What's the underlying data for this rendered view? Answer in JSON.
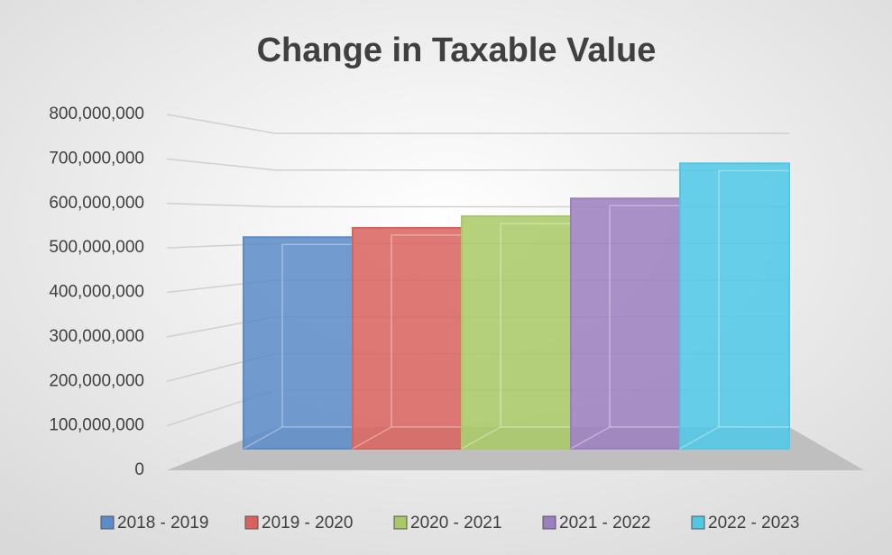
{
  "chart_data": {
    "type": "bar3d",
    "title": "Change in Taxable Value",
    "series": [
      {
        "name": "2018 - 2019",
        "color": "#5b8bc9",
        "values": [
          524000000
        ]
      },
      {
        "name": "2019 - 2020",
        "color": "#d9625e",
        "values": [
          545000000
        ]
      },
      {
        "name": "2020 - 2021",
        "color": "#a9c964",
        "values": [
          571000000
        ]
      },
      {
        "name": "2021 - 2022",
        "color": "#9b7fc0",
        "values": [
          611000000
        ]
      },
      {
        "name": "2022 - 2023",
        "color": "#4fc8e8",
        "values": [
          690000000
        ]
      }
    ],
    "ylim": [
      0,
      800000000
    ],
    "yticks": [
      0,
      {
        "value": 100000000,
        "label": "100,000,000"
      },
      {
        "value": 200000000,
        "label": "200,000,000"
      },
      {
        "value": 300000000,
        "label": "300,000,000"
      },
      {
        "value": 400000000,
        "label": "400,000,000"
      },
      {
        "value": 500000000,
        "label": "500,000,000"
      },
      {
        "value": 600000000,
        "label": "600,000,000"
      },
      {
        "value": 700000000,
        "label": "700,000,000"
      },
      {
        "value": 800000000,
        "label": "800,000,000"
      }
    ],
    "grid": true,
    "legend": "bottom"
  }
}
